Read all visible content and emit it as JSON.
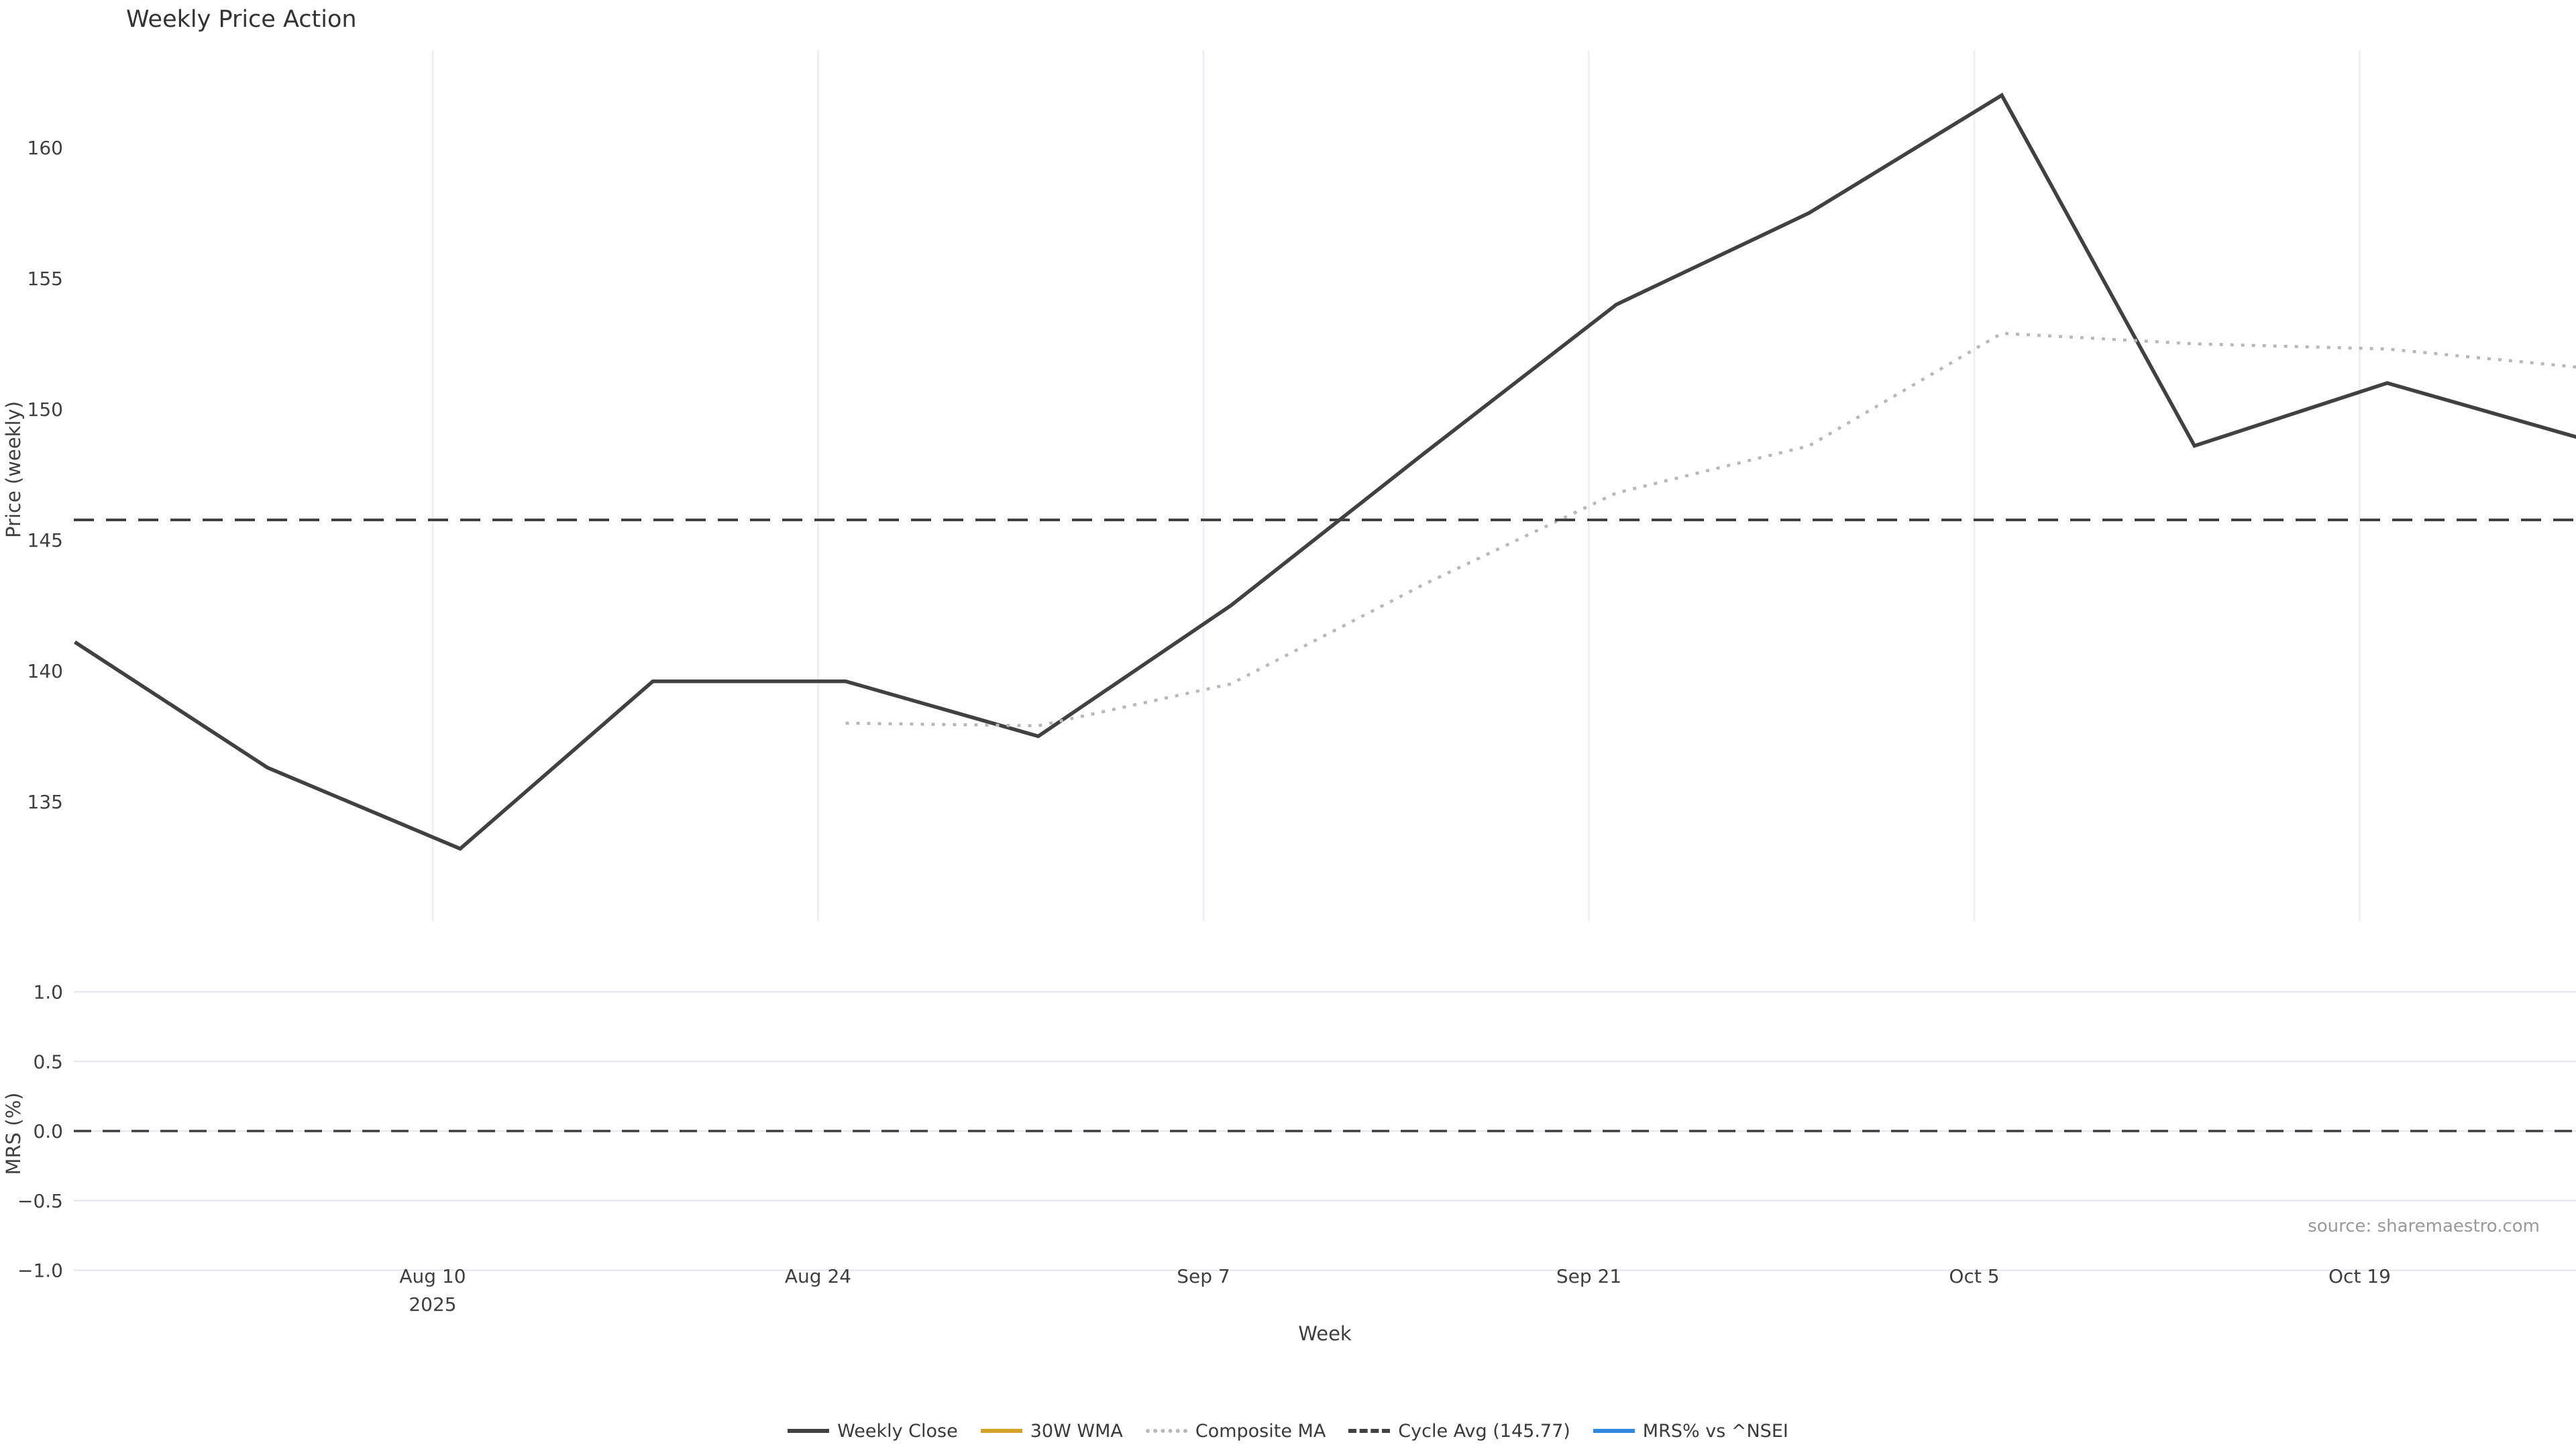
{
  "page": {
    "title": "Weekly Price Action",
    "source_note": "source: sharemaestro.com"
  },
  "colors": {
    "weekly_close": "#414141",
    "wma_30w": "#d4a12a",
    "composite_ma": "#b8b8b8",
    "cycle_avg": "#414141",
    "mrs": "#2f88e0",
    "grid_vertical": "#ededf4",
    "grid_horizontal": "#e9e9f1",
    "tick_text": "#3f3f3f",
    "source_text": "#9a9a9a"
  },
  "legend": {
    "items": [
      {
        "label": "Weekly Close",
        "style": "solid",
        "color": "#414141"
      },
      {
        "label": "30W WMA",
        "style": "solid",
        "color": "#d4a12a"
      },
      {
        "label": "Composite MA",
        "style": "dotted",
        "color": "#b8b8b8"
      },
      {
        "label": "Cycle Avg (145.77)",
        "style": "dashed",
        "color": "#414141"
      },
      {
        "label": "MRS% vs ^NSEI",
        "style": "solid",
        "color": "#2f88e0"
      }
    ]
  },
  "chart_data": {
    "type": "line",
    "title": "Weekly Price Action",
    "x": {
      "label": "Week",
      "tick_labels": [
        "Aug 10",
        "Aug 24",
        "Sep 7",
        "Sep 21",
        "Oct 5",
        "Oct 19"
      ],
      "first_tick_year": "2025",
      "week_dates": [
        "Jul 28",
        "Aug 4",
        "Aug 11",
        "Aug 18",
        "Aug 25",
        "Sep 1",
        "Sep 8",
        "Sep 15",
        "Sep 22",
        "Sep 29",
        "Oct 6",
        "Oct 13",
        "Oct 20",
        "Oct 27"
      ]
    },
    "panels": [
      {
        "name": "price",
        "ylabel": "Price (weekly)",
        "ylim": [
          130.4,
          163.7
        ],
        "ytick_labels": [
          "135",
          "140",
          "145",
          "150",
          "155",
          "160"
        ],
        "yticks": [
          135,
          140,
          145,
          150,
          155,
          160
        ],
        "grid": "vertical-only",
        "series": [
          {
            "name": "Weekly Close",
            "style": "solid",
            "color": "#414141",
            "width": 5.5,
            "start_index": 0,
            "values": [
              141.1,
              136.3,
              133.2,
              139.6,
              139.6,
              137.5,
              142.5,
              148.3,
              154.0,
              157.5,
              162.0,
              148.6,
              151.0,
              148.9
            ]
          },
          {
            "name": "30W WMA",
            "style": "solid",
            "color": "#d4a12a",
            "width": 5.5,
            "start_index": 0,
            "values": [],
            "note": "in legend but not visible in plotted range"
          },
          {
            "name": "Composite MA",
            "style": "dotted",
            "color": "#b8b8b8",
            "width": 4.5,
            "start_index": 4,
            "values": [
              138.0,
              137.9,
              139.5,
              143.3,
              146.8,
              148.6,
              152.9,
              152.5,
              152.3,
              151.6
            ]
          },
          {
            "name": "Cycle Avg (145.77)",
            "style": "dashed",
            "color": "#414141",
            "width": 4,
            "constant": 145.77
          }
        ]
      },
      {
        "name": "mrs",
        "ylabel": "MRS (%)",
        "ylim": [
          -1.1,
          1.1
        ],
        "ytick_labels": [
          "1.0",
          "0.5",
          "0.0",
          "−0.5",
          "−1.0"
        ],
        "yticks": [
          1.0,
          0.5,
          0.0,
          -0.5,
          -1.0
        ],
        "grid": "horizontal-only",
        "zero_line": {
          "style": "dashed",
          "color": "#3f3f3f",
          "value": 0.0
        },
        "series": [
          {
            "name": "MRS% vs ^NSEI",
            "style": "solid",
            "color": "#2f88e0",
            "width": 4,
            "start_index": 0,
            "values": [],
            "note": "no visible data in plotted range"
          }
        ]
      }
    ]
  }
}
